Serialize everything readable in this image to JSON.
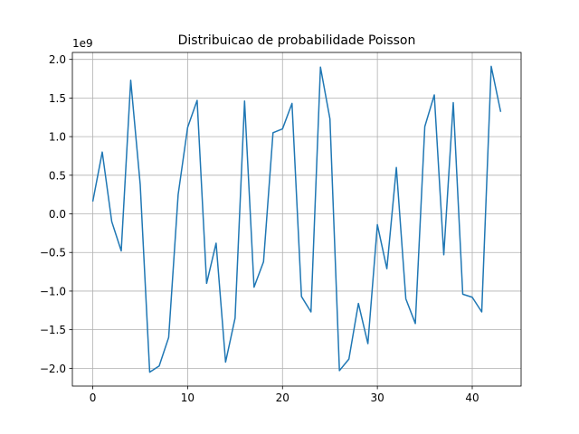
{
  "chart_data": {
    "type": "line",
    "title": "Distribuicao de probabilidade Poisson",
    "xlabel": "",
    "ylabel": "",
    "y_offset_label": "1e9",
    "grid": true,
    "xlim": [
      -2.15,
      45.15
    ],
    "ylim": [
      -2.23,
      2.09
    ],
    "xticks": [
      0,
      10,
      20,
      30,
      40
    ],
    "yticks": [
      -2.0,
      -1.5,
      -1.0,
      -0.5,
      0.0,
      0.5,
      1.0,
      1.5,
      2.0
    ],
    "ytick_labels": [
      "−2.0",
      "−1.5",
      "−1.0",
      "−0.5",
      "0.0",
      "0.5",
      "1.0",
      "1.5",
      "2.0"
    ],
    "line_color": "#1f77b4",
    "series": [
      {
        "x": [
          0,
          1,
          2,
          3,
          4,
          5,
          6,
          7,
          8,
          9,
          10,
          11,
          12,
          13,
          14,
          15,
          16,
          17,
          18,
          19,
          20,
          21,
          22,
          23,
          24,
          25,
          26,
          27,
          28,
          29,
          30,
          31,
          32,
          33,
          34,
          35,
          36,
          37,
          38,
          39,
          40,
          41,
          42,
          43
        ],
        "values": [
          0.16,
          0.8,
          -0.1,
          -0.48,
          1.73,
          0.38,
          -2.05,
          -1.97,
          -1.6,
          0.25,
          1.12,
          1.47,
          -0.9,
          -0.38,
          -1.92,
          -1.35,
          1.46,
          -0.95,
          -0.62,
          1.05,
          1.1,
          1.43,
          -1.07,
          -1.27,
          1.9,
          1.23,
          -2.03,
          -1.88,
          -1.16,
          -1.68,
          -0.14,
          -0.71,
          0.6,
          -1.1,
          -1.42,
          1.13,
          1.54,
          -0.53,
          1.44,
          -1.04,
          -1.08,
          -1.27,
          1.91,
          1.32
        ]
      }
    ]
  }
}
